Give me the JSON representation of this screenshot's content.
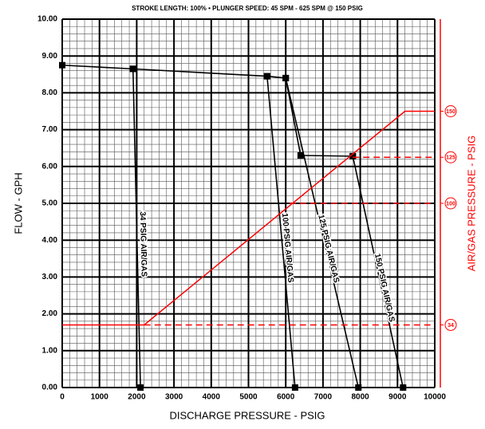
{
  "chart_data": {
    "type": "line",
    "title": "STROKE LENGTH: 100% • PLUNGER SPEED: 45 SPM - 625 SPM @ 150 PSIG",
    "x_label": "DISCHARGE PRESSURE - PSIG",
    "y_label": "FLOW - GPH",
    "y2_label": "AIR/GAS PRESSURE - PSIG",
    "xlim": [
      0,
      10000
    ],
    "xticks": [
      0,
      1000,
      2000,
      3000,
      4000,
      5000,
      6000,
      7000,
      8000,
      9000,
      10000
    ],
    "ylim": [
      0,
      10
    ],
    "yticks": [
      {
        "value": 0,
        "label": "0.00"
      },
      {
        "value": 1,
        "label": "1.00"
      },
      {
        "value": 2,
        "label": "2.00"
      },
      {
        "value": 3,
        "label": "3.00"
      },
      {
        "value": 4,
        "label": "4.00"
      },
      {
        "value": 5,
        "label": "5.00"
      },
      {
        "value": 6,
        "label": "6.00"
      },
      {
        "value": 7,
        "label": "7.00"
      },
      {
        "value": 8,
        "label": "8.00"
      },
      {
        "value": 9,
        "label": "9.00"
      },
      {
        "value": 10,
        "label": "10.00"
      }
    ],
    "y2lim": [
      0,
      200
    ],
    "y2ticks": [
      34,
      100,
      125,
      150
    ],
    "grid": true,
    "series": [
      {
        "color": "#000000",
        "x": [
          0,
          1900,
          5500,
          6000,
          6400,
          7800
        ],
        "values": [
          8.75,
          8.65,
          8.45,
          8.4,
          6.3,
          6.28
        ]
      },
      {
        "name": "34 PSIG AIR/GAS",
        "color": "#000000",
        "x": [
          1900,
          2100
        ],
        "values": [
          8.65,
          0
        ]
      },
      {
        "name": "100 PSIG AIR/GAS",
        "color": "#000000",
        "x": [
          5500,
          6250
        ],
        "values": [
          8.45,
          0
        ]
      },
      {
        "name": "125 PSIG AIR/GAS",
        "color": "#000000",
        "x": [
          6000,
          7950
        ],
        "values": [
          8.4,
          0
        ]
      },
      {
        "name": "150 PSIG AIR/GAS",
        "color": "#000000",
        "x": [
          7800,
          9150
        ],
        "values": [
          6.28,
          0
        ]
      },
      {
        "color": "#ff0000",
        "axis": "y2",
        "x": [
          0,
          2200,
          9200,
          10000
        ],
        "values": [
          34,
          34,
          150,
          150
        ]
      },
      {
        "color": "#ff0000",
        "axis": "y2",
        "dashed": true,
        "x": [
          2200,
          10000
        ],
        "values": [
          34,
          34
        ]
      },
      {
        "color": "#ff0000",
        "axis": "y2",
        "dashed": true,
        "x": [
          6100,
          10000
        ],
        "values": [
          100,
          100
        ]
      },
      {
        "color": "#ff0000",
        "axis": "y2",
        "dashed": true,
        "x": [
          7800,
          10000
        ],
        "values": [
          125,
          125
        ]
      }
    ]
  }
}
